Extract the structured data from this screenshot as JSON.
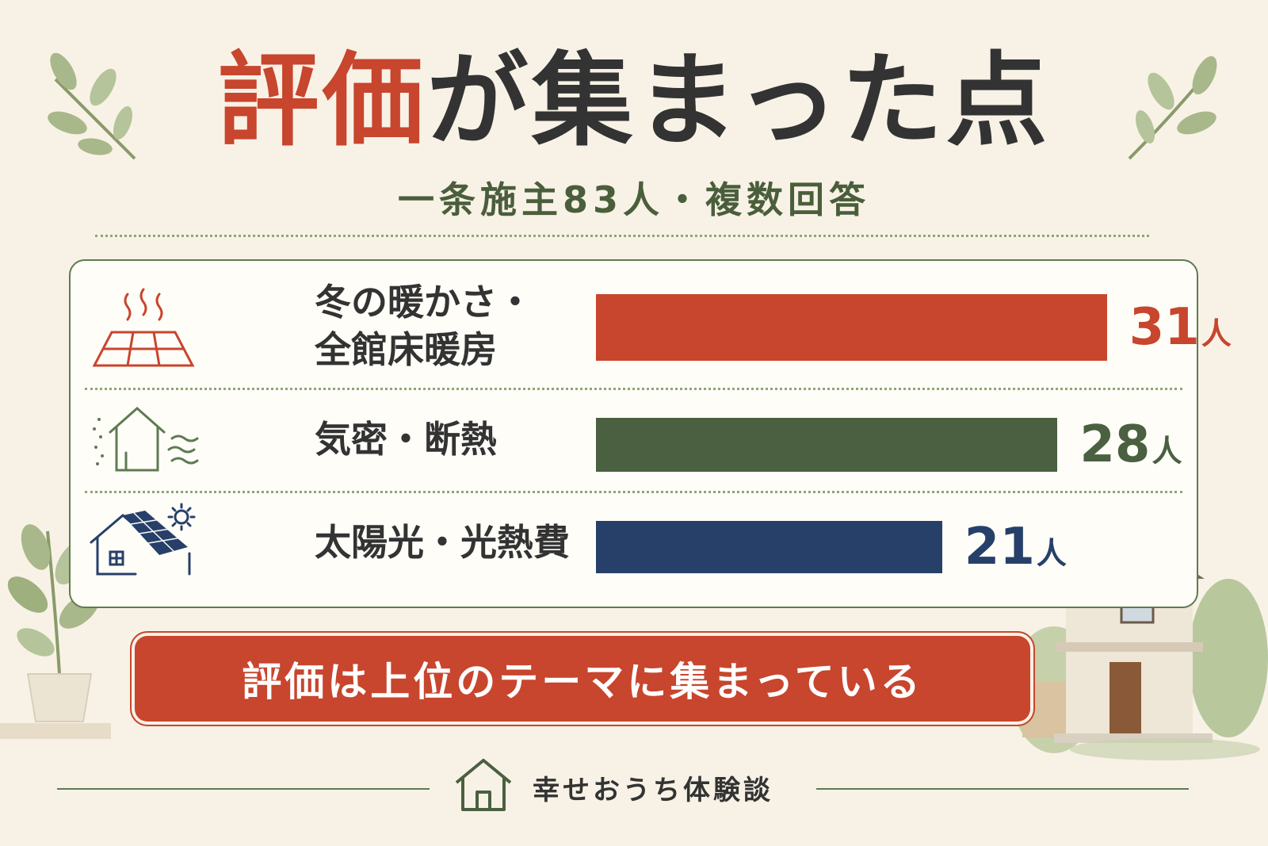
{
  "title": {
    "accent": "評価",
    "rest": "が集まった点"
  },
  "subtitle": "一条施主83人・複数回答",
  "chart_data": {
    "type": "bar",
    "orientation": "horizontal",
    "title": "評価が集まった点",
    "subtitle": "一条施主83人・複数回答",
    "categories": [
      "冬の暖かさ・全館床暖房",
      "気密・断熱",
      "太陽光・光熱費"
    ],
    "values": [
      31,
      28,
      21
    ],
    "unit": "人",
    "colors": [
      "#c8452e",
      "#4a6040",
      "#27406a"
    ],
    "xlim": [
      0,
      35
    ],
    "grid": false,
    "legend": "none"
  },
  "rows": [
    {
      "label": "冬の暖かさ・\n全館床暖房",
      "value": "31",
      "unit": "人",
      "color": "#c8452e",
      "icon": "floor-heating-icon"
    },
    {
      "label": "気密・断熱",
      "value": "28",
      "unit": "人",
      "color": "#4a6040",
      "icon": "insulated-house-icon"
    },
    {
      "label": "太陽光・光熱費",
      "value": "21",
      "unit": "人",
      "color": "#27406a",
      "icon": "solar-house-icon"
    }
  ],
  "banner": "評価は上位のテーマに集まっている",
  "footer": {
    "brand": "幸せおうち体験談",
    "icon": "house-outline-icon"
  },
  "decorations": [
    "leaf-branch-left",
    "leaf-branch-right",
    "potted-plant",
    "house-illustration"
  ]
}
